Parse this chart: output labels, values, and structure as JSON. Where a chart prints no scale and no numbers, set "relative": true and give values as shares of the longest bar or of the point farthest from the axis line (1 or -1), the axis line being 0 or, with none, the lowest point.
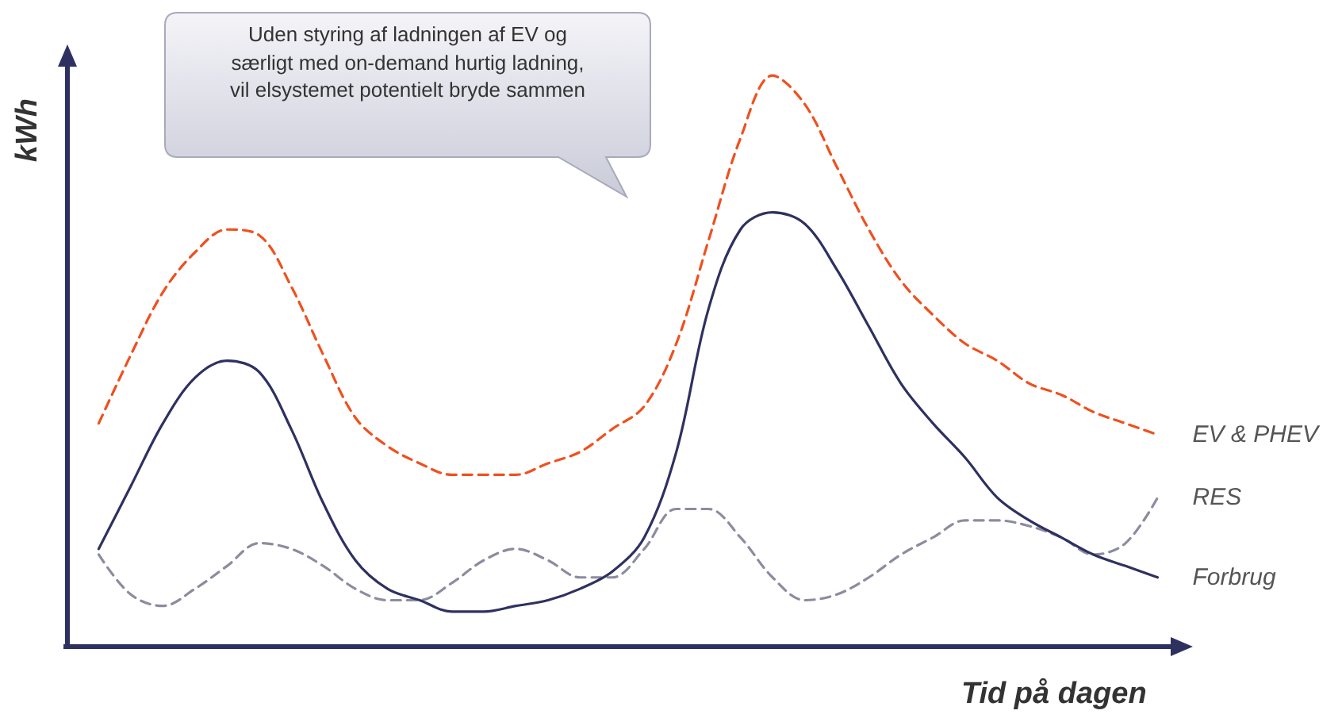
{
  "chart_data": {
    "type": "line",
    "relative": true,
    "xlabel": "Tid på dagen",
    "ylabel": "kWh",
    "annotations": [
      "Uden styring af ladningen af EV og\nsærligt med on-demand hurtig ladning,\nvil elsystemet potentielt bryde sammen"
    ],
    "categories": [
      null,
      null,
      null,
      null,
      null,
      null,
      null,
      null,
      null,
      null,
      null,
      null,
      null,
      null,
      null,
      null,
      null,
      null,
      null,
      null,
      null,
      null,
      null,
      null,
      null,
      null,
      null,
      null,
      null,
      null,
      null,
      null,
      null,
      null,
      null,
      null
    ],
    "marker": "none",
    "grid": false,
    "legend": false,
    "series": [
      {
        "name": "EV & PHEV",
        "color": "#f0501e",
        "line_style": "dashed",
        "values": [
          null,
          0.39,
          0.51,
          0.62,
          0.69,
          0.73,
          0.72,
          0.63,
          0.51,
          0.4,
          0.35,
          0.32,
          0.3,
          0.3,
          0.3,
          0.32,
          0.34,
          0.38,
          0.42,
          0.53,
          0.71,
          0.89,
          1,
          0.95,
          0.84,
          0.73,
          0.64,
          0.58,
          0.53,
          0.5,
          0.46,
          0.44,
          0.41,
          0.39,
          0.37,
          null
        ]
      },
      {
        "name": "RES",
        "color": "#8c8ca0",
        "line_style": "dashed",
        "values": [
          null,
          0.16,
          0.09,
          0.07,
          0.1,
          0.14,
          0.18,
          0.17,
          0.14,
          0.1,
          0.08,
          0.08,
          0.11,
          0.15,
          0.17,
          0.15,
          0.12,
          0.12,
          0.17,
          0.24,
          0.24,
          0.19,
          0.12,
          0.08,
          0.09,
          0.12,
          0.16,
          0.19,
          0.22,
          0.22,
          0.21,
          0.19,
          0.16,
          0.18,
          0.26,
          null
        ]
      },
      {
        "name": "Forbrug",
        "color": "#2e3160",
        "line_style": "solid",
        "values": [
          null,
          0.17,
          0.28,
          0.39,
          0.47,
          0.5,
          0.48,
          0.38,
          0.25,
          0.15,
          0.1,
          0.08,
          0.06,
          0.06,
          0.07,
          0.08,
          0.1,
          0.13,
          0.19,
          0.34,
          0.59,
          0.73,
          0.76,
          0.74,
          0.66,
          0.56,
          0.46,
          0.39,
          0.33,
          0.26,
          0.22,
          0.19,
          0.16,
          0.14,
          0.12,
          null
        ]
      }
    ]
  }
}
